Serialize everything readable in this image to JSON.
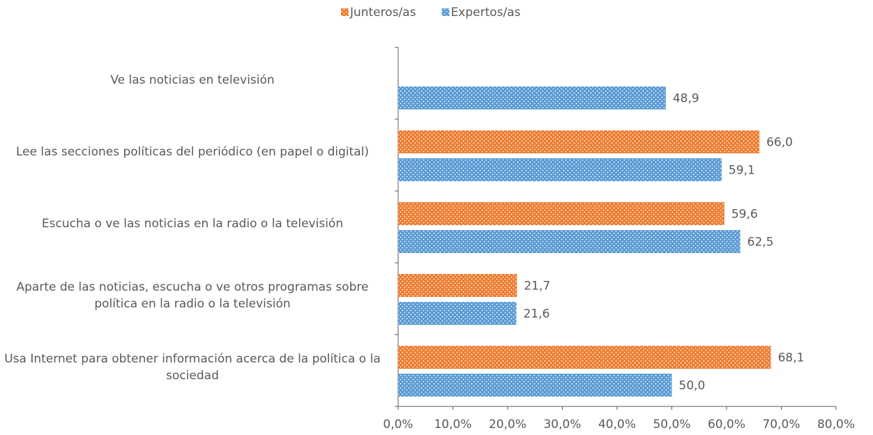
{
  "chart_data": {
    "type": "hbar",
    "categories": [
      "Ve las noticias en televisión",
      "Lee las secciones políticas del periódico (en papel o digital)",
      "Escucha o ve las noticias en la radio o la televisión",
      "Aparte de las noticias, escucha o ve otros programas sobre política en la radio o la televisión",
      "Usa Internet para obtener información acerca de la política o la sociedad"
    ],
    "series": [
      {
        "name": "Junteros/as",
        "color": "#ED7D31",
        "values": [
          null,
          66.0,
          59.6,
          21.7,
          68.1
        ],
        "value_labels": [
          null,
          "66,0",
          "59,6",
          "21,7",
          "68,1"
        ]
      },
      {
        "name": "Expertos/as",
        "color": "#5B9BD5",
        "values": [
          48.9,
          59.1,
          62.5,
          21.6,
          50.0
        ],
        "value_labels": [
          "48,9",
          "59,1",
          "62,5",
          "21,6",
          "50,0"
        ]
      }
    ],
    "xlim": [
      0,
      80
    ],
    "xticks": [
      {
        "value": 0,
        "label": "0,0%"
      },
      {
        "value": 10,
        "label": "10,0%"
      },
      {
        "value": 20,
        "label": "20,0%"
      },
      {
        "value": 30,
        "label": "30,0%"
      },
      {
        "value": 40,
        "label": "40,0%"
      },
      {
        "value": 50,
        "label": "50,0%"
      },
      {
        "value": 60,
        "label": "60,0%"
      },
      {
        "value": 70,
        "label": "70,0%"
      },
      {
        "value": 80,
        "label": "80,0%"
      }
    ],
    "legend": "top"
  }
}
